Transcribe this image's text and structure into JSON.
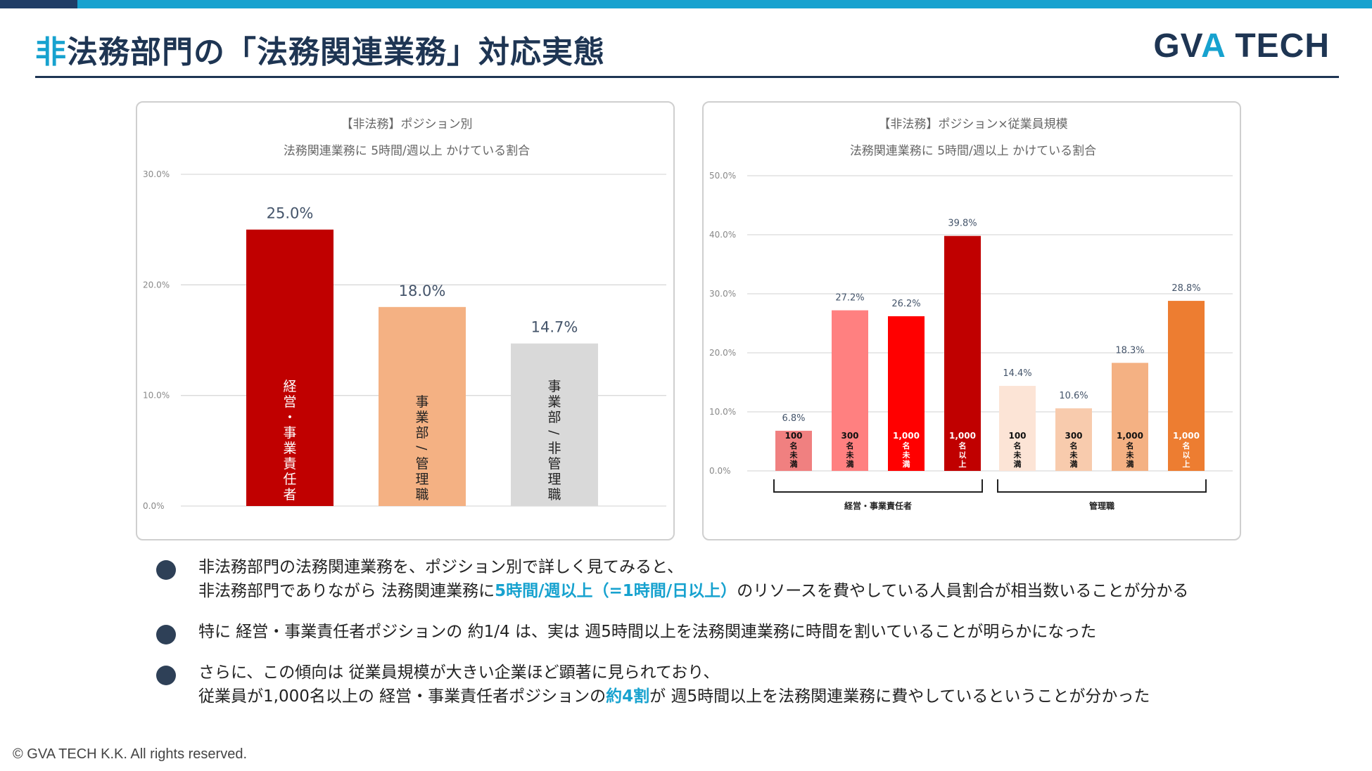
{
  "header": {
    "title_accent": "非",
    "title_rest": "法務部門の「法務関連業務」対応実態",
    "logo_part1": "GV",
    "logo_part2": "A",
    "logo_part3": " TECH"
  },
  "chart_data": [
    {
      "type": "bar",
      "title": "【非法務】ポジション別",
      "subtitle": "法務関連業務に 5時間/週以上 かけている割合",
      "categories": [
        "経営・事業責任者",
        "事業部/管理職",
        "事業部/非管理職"
      ],
      "values": [
        25.0,
        18.0,
        14.7
      ],
      "value_labels": [
        "25.0%",
        "18.0%",
        "14.7%"
      ],
      "colors": [
        "#c00000",
        "#f4b183",
        "#d9d9d9"
      ],
      "ylim": [
        0,
        30
      ],
      "yticks": [
        0,
        10,
        20,
        30
      ],
      "ytick_labels": [
        "0.0%",
        "10.0%",
        "20.0%",
        "30.0%"
      ],
      "grid": true
    },
    {
      "type": "bar",
      "title": "【非法務】ポジション×従業員規模",
      "subtitle": "法務関連業務に 5時間/週以上 かけている割合",
      "categories": [
        "100名未満",
        "300名未満",
        "1,000名未満",
        "1,000名以上",
        "100名未満",
        "300名未満",
        "1,000名未満",
        "1,000名以上"
      ],
      "values": [
        6.8,
        27.2,
        26.2,
        39.8,
        14.4,
        10.6,
        18.3,
        28.8
      ],
      "value_labels": [
        "6.8%",
        "27.2%",
        "26.2%",
        "39.8%",
        "14.4%",
        "10.6%",
        "18.3%",
        "28.8%"
      ],
      "colors": [
        "#f08080",
        "#ff8080",
        "#ff0000",
        "#c00000",
        "#fce4d6",
        "#f8cbad",
        "#f4b183",
        "#ed7d31"
      ],
      "groups": [
        {
          "label": "経営・事業責任者",
          "indices": [
            0,
            1,
            2,
            3
          ]
        },
        {
          "label": "管理職",
          "indices": [
            4,
            5,
            6,
            7
          ]
        }
      ],
      "ylim": [
        0,
        50
      ],
      "yticks": [
        0,
        10,
        20,
        30,
        40,
        50
      ],
      "ytick_labels": [
        "0.0%",
        "10.0%",
        "20.0%",
        "30.0%",
        "40.0%",
        "50.0%"
      ],
      "grid": true
    }
  ],
  "bullets": [
    {
      "line1": "非法務部門の法務関連業務を、ポジション別で詳しく見てみると、",
      "line2_pre": "非法務部門でありながら 法務関連業務に",
      "line2_hl": "5時間/週以上（=1時間/日以上）",
      "line2_post": "のリソースを費やしている人員割合が相当数いることが分かる"
    },
    {
      "line1": "特に 経営・事業責任者ポジションの 約1/4 は、実は 週5時間以上を法務関連業務に時間を割いていることが明らかになった"
    },
    {
      "line1": "さらに、この傾向は 従業員規模が大きい企業ほど顕著に見られており、",
      "line2_pre": "従業員が1,000名以上の 経営・事業責任者ポジションの",
      "line2_hl": "約4割",
      "line2_post": "が 週5時間以上を法務関連業務に費やしているということが分かった"
    }
  ],
  "footer": {
    "copyright": "© GVA TECH K.K. All rights reserved."
  }
}
